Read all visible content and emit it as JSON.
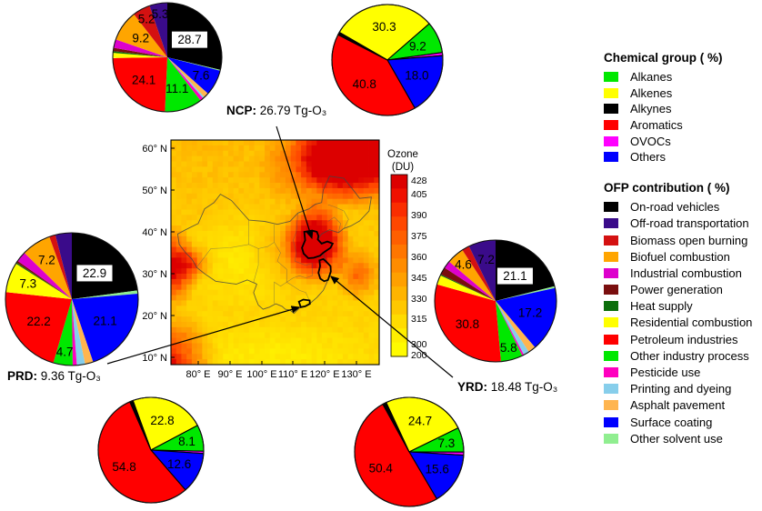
{
  "palette": {
    "alkanes": "#00e800",
    "alkenes": "#ffff00",
    "alkynes": "#000000",
    "aromatics": "#ff0000",
    "ovocs": "#ff00ff",
    "others": "#0000ff",
    "on_road": "#000000",
    "off_road": "#3a0b8a",
    "biomass": "#d41111",
    "biofuel": "#ffa500",
    "industrial": "#dd00cc",
    "power": "#7a0e0e",
    "heat": "#0b6e0b",
    "residential": "#ffff00",
    "petroleum": "#ff0000",
    "other_industry": "#00e800",
    "pesticide": "#ff00bf",
    "printing": "#87ceeb",
    "asphalt": "#ffb54f",
    "surface": "#0000ff",
    "other_solvent": "#90ee90"
  },
  "legend_chemical": {
    "title": "Chemical group ( %)",
    "items": [
      {
        "key": "alkanes",
        "label": "Alkanes"
      },
      {
        "key": "alkenes",
        "label": "Alkenes"
      },
      {
        "key": "alkynes",
        "label": "Alkynes"
      },
      {
        "key": "aromatics",
        "label": "Aromatics"
      },
      {
        "key": "ovocs",
        "label": "OVOCs"
      },
      {
        "key": "others",
        "label": "Others"
      }
    ]
  },
  "legend_ofp": {
    "title": "OFP contribution  ( %)",
    "items": [
      {
        "key": "on_road",
        "label": "On-road vehicles"
      },
      {
        "key": "off_road",
        "label": "Off-road transportation"
      },
      {
        "key": "biomass",
        "label": "Biomass open burning"
      },
      {
        "key": "biofuel",
        "label": "Biofuel combustion"
      },
      {
        "key": "industrial",
        "label": "Industrial combustion"
      },
      {
        "key": "power",
        "label": "Power generation"
      },
      {
        "key": "heat",
        "label": "Heat supply"
      },
      {
        "key": "residential",
        "label": "Residential combustion"
      },
      {
        "key": "petroleum",
        "label": "Petroleum industries"
      },
      {
        "key": "other_industry",
        "label": "Other industry process"
      },
      {
        "key": "pesticide",
        "label": "Pesticide use"
      },
      {
        "key": "printing",
        "label": "Printing and dyeing"
      },
      {
        "key": "asphalt",
        "label": "Asphalt pavement"
      },
      {
        "key": "surface",
        "label": "Surface coating"
      },
      {
        "key": "other_solvent",
        "label": "Other solvent use"
      }
    ]
  },
  "map": {
    "x_ticks": [
      "80° E",
      "90° E",
      "100° E",
      "110° E",
      "120° E",
      "130° E"
    ],
    "y_ticks": [
      "60° N",
      "50° N",
      "40° N",
      "30° N",
      "20° N",
      "10° N"
    ],
    "colorbar": {
      "title1": "Ozone",
      "title2": "(DU)",
      "ticks": [
        "428",
        "405",
        "390",
        "375",
        "360",
        "345",
        "330",
        "315",
        "300",
        "200"
      ]
    }
  },
  "regions": [
    {
      "id": "ncp",
      "label_bold": "NCP:",
      "label_rest": " 26.79 Tg-O₃"
    },
    {
      "id": "prd",
      "label_bold": "PRD:",
      "label_rest": " 9.36 Tg-O₃"
    },
    {
      "id": "yrd",
      "label_bold": "YRD:",
      "label_rest": " 18.48 Tg-O₃"
    }
  ],
  "chart_data": [
    {
      "id": "ncp_ofp",
      "type": "pie",
      "region": "NCP",
      "group": "OFP contribution (%)",
      "start_angle": 0,
      "outlined": false,
      "note": "unlabeled minor slices estimated from arc angles",
      "slices": [
        {
          "key": "on_road",
          "value": 28.7,
          "labeled": true,
          "boxed": true
        },
        {
          "key": "other_solvent",
          "value": 0.3
        },
        {
          "key": "surface",
          "value": 7.6,
          "labeled": true
        },
        {
          "key": "asphalt",
          "value": 1.5
        },
        {
          "key": "printing",
          "value": 0.5
        },
        {
          "key": "pesticide",
          "value": 1.0
        },
        {
          "key": "other_industry",
          "value": 11.1,
          "labeled": true
        },
        {
          "key": "petroleum",
          "value": 24.1,
          "labeled": true
        },
        {
          "key": "residential",
          "value": 1.5
        },
        {
          "key": "heat",
          "value": 0.5
        },
        {
          "key": "power",
          "value": 1.0
        },
        {
          "key": "industrial",
          "value": 2.5
        },
        {
          "key": "biofuel",
          "value": 9.2,
          "labeled": true
        },
        {
          "key": "biomass",
          "value": 5.2,
          "labeled": true
        },
        {
          "key": "off_road",
          "value": 5.3,
          "labeled": true
        }
      ]
    },
    {
      "id": "ncp_chem",
      "type": "pie",
      "region": "NCP",
      "group": "Chemical group (%)",
      "start_angle": 300,
      "outlined": true,
      "note": "unlabeled minor slices estimated from arc angles",
      "slices": [
        {
          "key": "alkenes",
          "value": 30.3,
          "labeled": true
        },
        {
          "key": "alkanes",
          "value": 9.2,
          "labeled": true
        },
        {
          "key": "ovocs",
          "value": 0.9
        },
        {
          "key": "others",
          "value": 18.0,
          "labeled": true
        },
        {
          "key": "aromatics",
          "value": 40.8,
          "labeled": true
        },
        {
          "key": "alkynes",
          "value": 0.8
        }
      ]
    },
    {
      "id": "prd_ofp",
      "type": "pie",
      "region": "PRD",
      "group": "OFP contribution (%)",
      "start_angle": 0,
      "outlined": false,
      "note": "unlabeled minor slices estimated from arc angles",
      "slices": [
        {
          "key": "on_road",
          "value": 22.9,
          "labeled": true,
          "boxed": true
        },
        {
          "key": "other_solvent",
          "value": 0.8
        },
        {
          "key": "surface",
          "value": 21.1,
          "labeled": true
        },
        {
          "key": "asphalt",
          "value": 2.0
        },
        {
          "key": "printing",
          "value": 2.0
        },
        {
          "key": "pesticide",
          "value": 1.0
        },
        {
          "key": "other_industry",
          "value": 4.7,
          "labeled": true
        },
        {
          "key": "petroleum",
          "value": 22.2,
          "labeled": true
        },
        {
          "key": "residential",
          "value": 7.3,
          "labeled": true
        },
        {
          "key": "heat",
          "value": 0.3
        },
        {
          "key": "power",
          "value": 0.5
        },
        {
          "key": "industrial",
          "value": 2.5
        },
        {
          "key": "biofuel",
          "value": 7.2,
          "labeled": true
        },
        {
          "key": "biomass",
          "value": 1.5
        },
        {
          "key": "off_road",
          "value": 4.0
        }
      ]
    },
    {
      "id": "yrd_ofp",
      "type": "pie",
      "region": "YRD",
      "group": "OFP contribution (%)",
      "start_angle": 0,
      "outlined": false,
      "note": "unlabeled minor slices estimated from arc angles",
      "slices": [
        {
          "key": "on_road",
          "value": 21.1,
          "labeled": true,
          "boxed": true
        },
        {
          "key": "other_solvent",
          "value": 0.5
        },
        {
          "key": "surface",
          "value": 17.2,
          "labeled": true
        },
        {
          "key": "asphalt",
          "value": 2.0
        },
        {
          "key": "printing",
          "value": 1.5
        },
        {
          "key": "pesticide",
          "value": 0.5
        },
        {
          "key": "other_industry",
          "value": 5.8,
          "labeled": true
        },
        {
          "key": "petroleum",
          "value": 30.8,
          "labeled": true
        },
        {
          "key": "residential",
          "value": 2.5
        },
        {
          "key": "heat",
          "value": 0.3
        },
        {
          "key": "power",
          "value": 2.0
        },
        {
          "key": "industrial",
          "value": 2.0
        },
        {
          "key": "biofuel",
          "value": 4.6,
          "labeled": true
        },
        {
          "key": "biomass",
          "value": 2.0
        },
        {
          "key": "off_road",
          "value": 7.2,
          "labeled": true
        }
      ]
    },
    {
      "id": "prd_chem",
      "type": "pie",
      "region": "PRD",
      "group": "Chemical group (%)",
      "start_angle": 340,
      "outlined": true,
      "note": "unlabeled minor slices estimated from arc angles",
      "slices": [
        {
          "key": "alkenes",
          "value": 22.8,
          "labeled": true
        },
        {
          "key": "alkanes",
          "value": 8.1,
          "labeled": true
        },
        {
          "key": "ovocs",
          "value": 0.7
        },
        {
          "key": "others",
          "value": 12.6,
          "labeled": true
        },
        {
          "key": "aromatics",
          "value": 54.8,
          "labeled": true
        },
        {
          "key": "alkynes",
          "value": 1.0
        }
      ]
    },
    {
      "id": "yrd_chem",
      "type": "pie",
      "region": "YRD",
      "group": "Chemical group (%)",
      "start_angle": 335,
      "outlined": true,
      "note": "unlabeled minor slices estimated from arc angles",
      "slices": [
        {
          "key": "alkenes",
          "value": 24.7,
          "labeled": true
        },
        {
          "key": "alkanes",
          "value": 7.3,
          "labeled": true
        },
        {
          "key": "ovocs",
          "value": 0.9
        },
        {
          "key": "others",
          "value": 15.6,
          "labeled": true
        },
        {
          "key": "aromatics",
          "value": 50.4,
          "labeled": true
        },
        {
          "key": "alkynes",
          "value": 1.1
        }
      ]
    },
    {
      "id": "ozone_map",
      "type": "heatmap",
      "title": "Ozone (DU)",
      "x_tick_labels": [
        "80° E",
        "90° E",
        "100° E",
        "110° E",
        "120° E",
        "130° E"
      ],
      "y_tick_labels": [
        "60° N",
        "50° N",
        "40° N",
        "30° N",
        "20° N",
        "10° N"
      ],
      "colorbar_ticks": [
        428,
        405,
        390,
        375,
        360,
        345,
        330,
        315,
        300,
        200
      ],
      "annotations": [
        {
          "region": "NCP",
          "total": "26.79 Tg-O₃"
        },
        {
          "region": "YRD",
          "total": "18.48 Tg-O₃"
        },
        {
          "region": "PRD",
          "total": "9.36 Tg-O₃"
        }
      ]
    }
  ]
}
